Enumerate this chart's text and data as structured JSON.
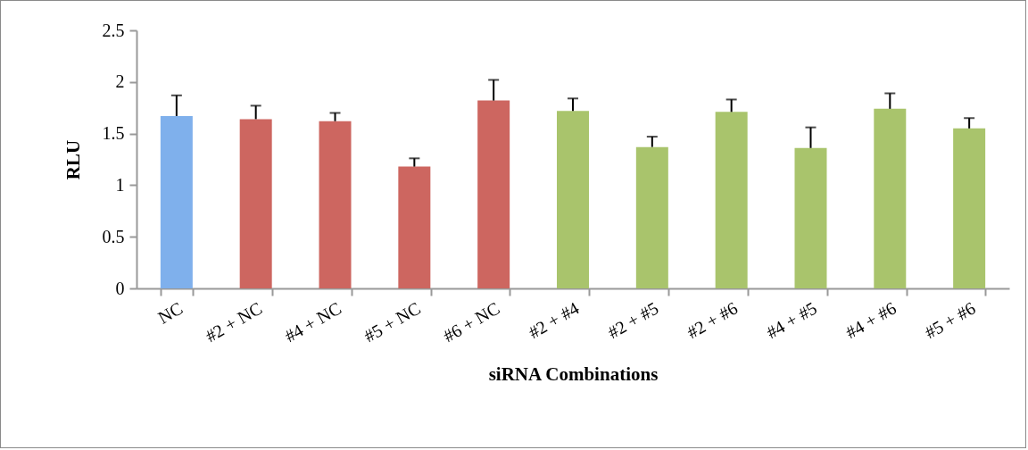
{
  "chart_data": {
    "type": "bar",
    "xlabel": "siRNA Combinations",
    "ylabel": "RLU",
    "categories": [
      "NC",
      "#2 + NC",
      "#4 + NC",
      "#5 + NC",
      "#6 + NC",
      "#2 + #4",
      "#2 + #5",
      "#2 + #6",
      "#4 + #5",
      "#4 + #6",
      "#5 + #6"
    ],
    "values": [
      1.67,
      1.64,
      1.62,
      1.18,
      1.82,
      1.72,
      1.37,
      1.71,
      1.36,
      1.74,
      1.55
    ],
    "errors": [
      0.2,
      0.13,
      0.08,
      0.08,
      0.2,
      0.12,
      0.1,
      0.12,
      0.2,
      0.15,
      0.1
    ],
    "colors": [
      "#7fb0ec",
      "#cd6660",
      "#cd6660",
      "#cd6660",
      "#cd6660",
      "#a9c46c",
      "#a9c46c",
      "#a9c46c",
      "#a9c46c",
      "#a9c46c",
      "#a9c46c"
    ],
    "ylim": [
      0,
      2.5
    ],
    "yticks": [
      0,
      0.5,
      1,
      1.5,
      2,
      2.5
    ],
    "grid": false
  }
}
